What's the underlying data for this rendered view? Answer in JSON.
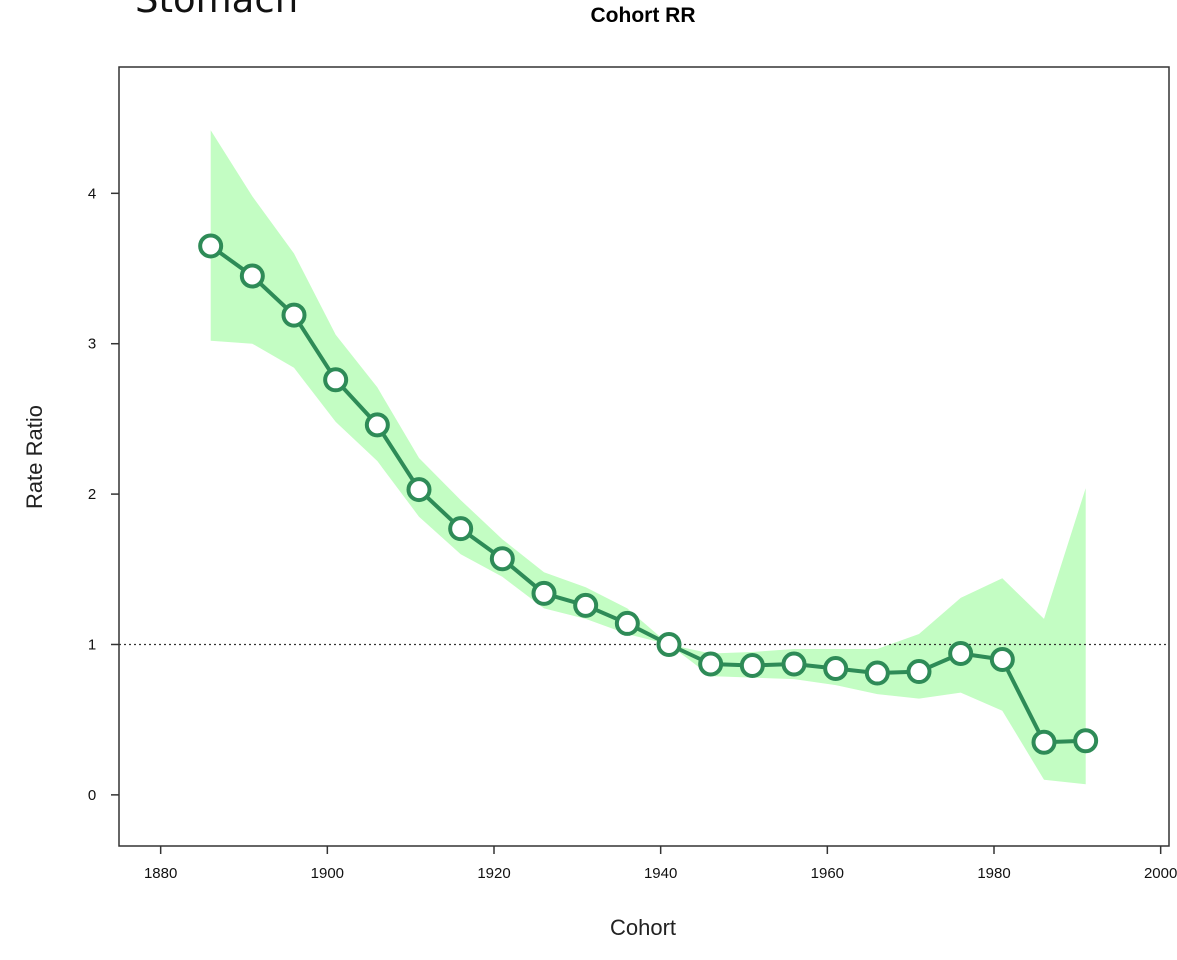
{
  "overlay_label": "Stomach",
  "chart_data": {
    "type": "line",
    "title": "Cohort RR",
    "xlabel": "Cohort",
    "ylabel": "Rate Ratio",
    "xlim": [
      1875,
      2001
    ],
    "ylim": [
      -0.34,
      4.84
    ],
    "xticks": [
      1880,
      1900,
      1920,
      1940,
      1960,
      1980,
      2000
    ],
    "xtick_labels": [
      "1880",
      "1900",
      "1920",
      "1940",
      "1960",
      "1980",
      "2000"
    ],
    "yticks": [
      0,
      1,
      2,
      3,
      4
    ],
    "ytick_labels": [
      "0",
      "1",
      "2",
      "3",
      "4"
    ],
    "reference_line": 1,
    "grid": false,
    "series": [
      {
        "x": [
          1886,
          1891,
          1896,
          1901,
          1906,
          1911,
          1916,
          1921,
          1926,
          1931,
          1936,
          1941,
          1946,
          1951,
          1956,
          1961,
          1966,
          1971,
          1976,
          1981,
          1986,
          1991
        ],
        "y": [
          3.65,
          3.45,
          3.19,
          2.76,
          2.46,
          2.03,
          1.77,
          1.57,
          1.34,
          1.26,
          1.14,
          1.0,
          0.87,
          0.86,
          0.87,
          0.84,
          0.81,
          0.82,
          0.94,
          0.9,
          0.35,
          0.36
        ],
        "lower": [
          3.02,
          3.0,
          2.84,
          2.48,
          2.22,
          1.85,
          1.6,
          1.45,
          1.24,
          1.17,
          1.07,
          1.0,
          0.79,
          0.78,
          0.77,
          0.73,
          0.67,
          0.64,
          0.68,
          0.56,
          0.1,
          0.07
        ],
        "upper": [
          4.42,
          3.98,
          3.6,
          3.06,
          2.71,
          2.24,
          1.96,
          1.7,
          1.48,
          1.38,
          1.24,
          1.0,
          0.94,
          0.95,
          0.97,
          0.97,
          0.97,
          1.07,
          1.31,
          1.44,
          1.17,
          2.04
        ]
      }
    ],
    "colors": {
      "line": "#2e8b57",
      "band": "#c3fdc3",
      "marker_fill": "#ffffff",
      "axes": "#333333"
    }
  }
}
